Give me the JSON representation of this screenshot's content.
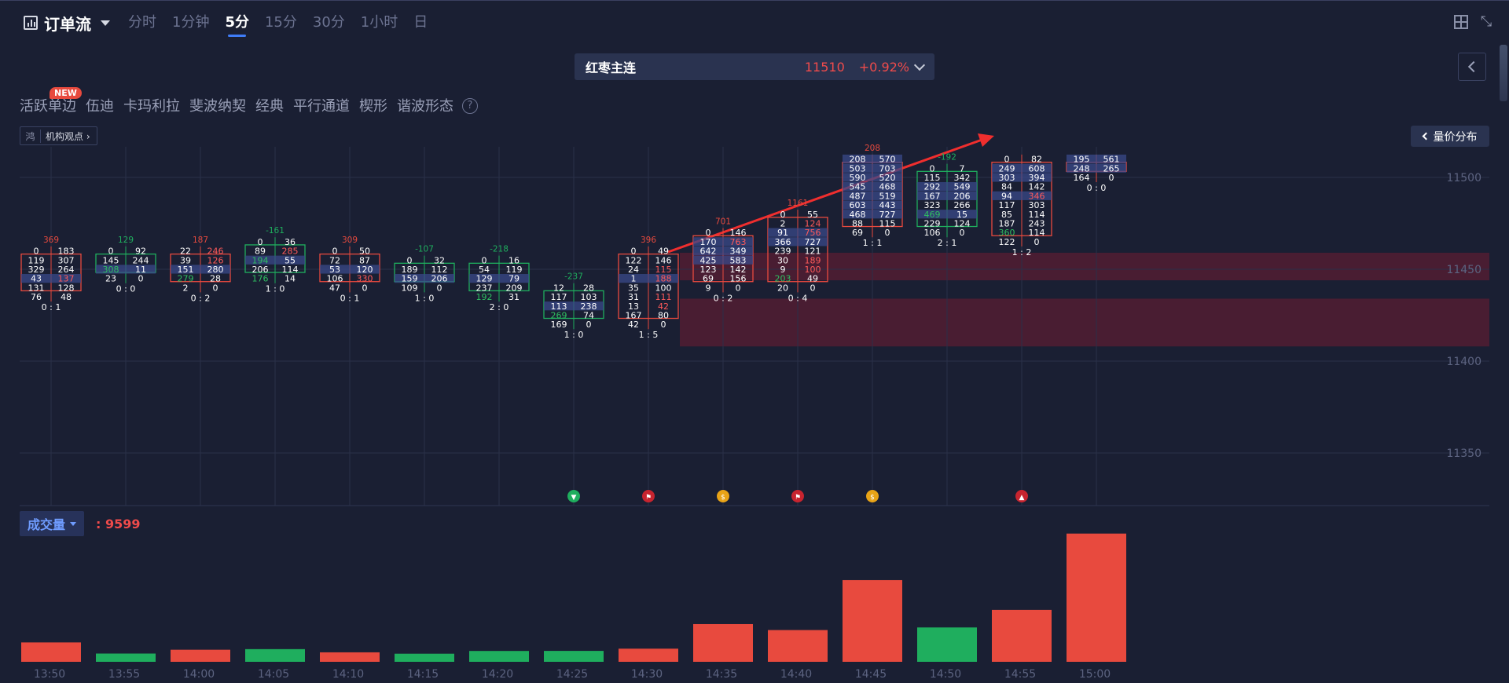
{
  "header": {
    "title": "订单流",
    "periods": [
      "分时",
      "1分钟",
      "5分",
      "15分",
      "30分",
      "1小时",
      "日"
    ],
    "active_period": "5分"
  },
  "instrument": {
    "name": "红枣主连",
    "price": "11510",
    "change_pct": "+0.92%"
  },
  "toolbar": {
    "tools": [
      "活跃单边",
      "伍迪",
      "卡玛利拉",
      "斐波纳契",
      "经典",
      "平行通道",
      "楔形",
      "谐波形态"
    ],
    "new_badge": "NEW",
    "help": "?",
    "institution_view": "机构观点",
    "institution_logo": "鸿",
    "volume_profile": "量价分布"
  },
  "volume_panel": {
    "indicator": "成交量",
    "value": ": 9599"
  },
  "colors": {
    "up": "#e84a3e",
    "down": "#1fae5e",
    "bg": "#1a1f33",
    "accent": "#3f7cf7"
  },
  "chart_data": {
    "type": "footprint",
    "price_axis": [
      "11500",
      "11450",
      "11400",
      "11350"
    ],
    "time_axis": [
      "13:50",
      "13:55",
      "14:00",
      "14:05",
      "14:10",
      "14:15",
      "14:20",
      "14:25",
      "14:30",
      "14:35",
      "14:40",
      "14:45",
      "14:50",
      "14:55",
      "15:00"
    ],
    "highlight_zones": [
      [
        11444,
        11459
      ],
      [
        11408,
        11434
      ]
    ],
    "candles": [
      {
        "time": "13:50",
        "delta": "369",
        "dir": "up",
        "top": 11462,
        "rows": [
          [
            "0",
            "183"
          ],
          [
            "119",
            "307"
          ],
          [
            "329",
            "264"
          ],
          [
            "43",
            "137"
          ],
          [
            "131",
            "128"
          ],
          [
            "76",
            "48"
          ]
        ],
        "ratio": "0 : 1",
        "volume": 1268
      },
      {
        "time": "13:55",
        "delta": "129",
        "dir": "down",
        "top": 11462,
        "rows": [
          [
            "0",
            "92"
          ],
          [
            "145",
            "244"
          ],
          [
            "308",
            "11"
          ],
          [
            "23",
            "0"
          ]
        ],
        "ratio": "0 : 0",
        "volume": 540
      },
      {
        "time": "14:00",
        "delta": "187",
        "dir": "up",
        "top": 11462,
        "rows": [
          [
            "22",
            "246"
          ],
          [
            "39",
            "126"
          ],
          [
            "151",
            "280"
          ],
          [
            "279",
            "28"
          ],
          [
            "2",
            "0"
          ]
        ],
        "ratio": "0 : 2",
        "volume": 790
      },
      {
        "time": "14:05",
        "delta": "-161",
        "dir": "down",
        "top": 11467,
        "rows": [
          [
            "0",
            "36"
          ],
          [
            "89",
            "285"
          ],
          [
            "194",
            "55"
          ],
          [
            "206",
            "114"
          ],
          [
            "176",
            "14"
          ]
        ],
        "ratio": "1 : 0",
        "volume": 830
      },
      {
        "time": "14:10",
        "delta": "309",
        "dir": "up",
        "top": 11462,
        "rows": [
          [
            "0",
            "50"
          ],
          [
            "72",
            "87"
          ],
          [
            "53",
            "120"
          ],
          [
            "106",
            "330"
          ],
          [
            "47",
            "0"
          ]
        ],
        "ratio": "0 : 1",
        "volume": 620
      },
      {
        "time": "14:15",
        "delta": "-107",
        "dir": "down",
        "top": 11457,
        "rows": [
          [
            "0",
            "32"
          ],
          [
            "189",
            "112"
          ],
          [
            "159",
            "206"
          ],
          [
            "109",
            "0"
          ]
        ],
        "ratio": "1 : 0",
        "volume": 530
      },
      {
        "time": "14:20",
        "delta": "-218",
        "dir": "down",
        "top": 11457,
        "rows": [
          [
            "0",
            "16"
          ],
          [
            "54",
            "119"
          ],
          [
            "129",
            "79"
          ],
          [
            "237",
            "209"
          ],
          [
            "192",
            "31"
          ]
        ],
        "ratio": "2 : 0",
        "volume": 710
      },
      {
        "time": "14:25",
        "delta": "-237",
        "dir": "down",
        "top": 11442,
        "rows": [
          [
            "12",
            "28"
          ],
          [
            "117",
            "103"
          ],
          [
            "113",
            "238"
          ],
          [
            "269",
            "74"
          ],
          [
            "169",
            "0"
          ]
        ],
        "ratio": "1 : 0",
        "volume": 715
      },
      {
        "time": "14:30",
        "delta": "396",
        "dir": "up",
        "top": 11462,
        "rows": [
          [
            "0",
            "49"
          ],
          [
            "122",
            "146"
          ],
          [
            "24",
            "115"
          ],
          [
            "1",
            "188"
          ],
          [
            "35",
            "100"
          ],
          [
            "31",
            "111"
          ],
          [
            "13",
            "42"
          ],
          [
            "167",
            "80"
          ],
          [
            "42",
            "0"
          ]
        ],
        "ratio": "1 : 5",
        "volume": 860
      },
      {
        "time": "14:35",
        "delta": "701",
        "dir": "up",
        "top": 11472,
        "rows": [
          [
            "0",
            "146"
          ],
          [
            "170",
            "763"
          ],
          [
            "642",
            "349"
          ],
          [
            "425",
            "583"
          ],
          [
            "123",
            "142"
          ],
          [
            "69",
            "156"
          ],
          [
            "9",
            "0"
          ]
        ],
        "ratio": "0 : 2",
        "volume": 2470
      },
      {
        "time": "14:40",
        "delta": "1161",
        "dir": "up",
        "top": 11482,
        "rows": [
          [
            "0",
            "55"
          ],
          [
            "2",
            "124"
          ],
          [
            "91",
            "756"
          ],
          [
            "366",
            "727"
          ],
          [
            "239",
            "121"
          ],
          [
            "30",
            "189"
          ],
          [
            "9",
            "100"
          ],
          [
            "203",
            "49"
          ],
          [
            "20",
            "0"
          ]
        ],
        "ratio": "0 : 4",
        "volume": 2080
      },
      {
        "time": "14:45",
        "delta": "208",
        "dir": "up",
        "top": 11512,
        "rows": [
          [
            "208",
            "570"
          ],
          [
            "503",
            "703"
          ],
          [
            "590",
            "520"
          ],
          [
            "545",
            "468"
          ],
          [
            "487",
            "519"
          ],
          [
            "603",
            "443"
          ],
          [
            "468",
            "727"
          ],
          [
            "88",
            "115"
          ],
          [
            "69",
            "0"
          ]
        ],
        "ratio": "1 : 1",
        "volume": 5350
      },
      {
        "time": "14:50",
        "delta": "-192",
        "dir": "down",
        "top": 11507,
        "rows": [
          [
            "0",
            "7"
          ],
          [
            "115",
            "342"
          ],
          [
            "292",
            "549"
          ],
          [
            "167",
            "206"
          ],
          [
            "323",
            "266"
          ],
          [
            "469",
            "15"
          ],
          [
            "229",
            "124"
          ],
          [
            "106",
            "0"
          ]
        ],
        "ratio": "2 : 1",
        "volume": 2250
      },
      {
        "time": "14:55",
        "delta": "",
        "dir": "up",
        "top": 11512,
        "rows": [
          [
            "0",
            "82"
          ],
          [
            "249",
            "608"
          ],
          [
            "303",
            "394"
          ],
          [
            "84",
            "142"
          ],
          [
            "94",
            "346"
          ],
          [
            "117",
            "303"
          ],
          [
            "85",
            "114"
          ],
          [
            "187",
            "243"
          ],
          [
            "360",
            "114"
          ],
          [
            "122",
            "0"
          ]
        ],
        "ratio": "1 : 2",
        "volume": 3400
      },
      {
        "time": "15:00",
        "delta": "",
        "dir": "up",
        "top": 11512,
        "rows": [
          [
            "195",
            "561"
          ],
          [
            "248",
            "265"
          ],
          [
            "164",
            "0"
          ]
        ],
        "ratio": "0 : 0",
        "volume": 8400
      }
    ],
    "signals": [
      {
        "time": "14:25",
        "kind": "down-arrow"
      },
      {
        "time": "14:30",
        "kind": "flag"
      },
      {
        "time": "14:35",
        "kind": "coin"
      },
      {
        "time": "14:40",
        "kind": "flag"
      },
      {
        "time": "14:45",
        "kind": "coin"
      },
      {
        "time": "14:55",
        "kind": "up-arrow"
      }
    ]
  }
}
